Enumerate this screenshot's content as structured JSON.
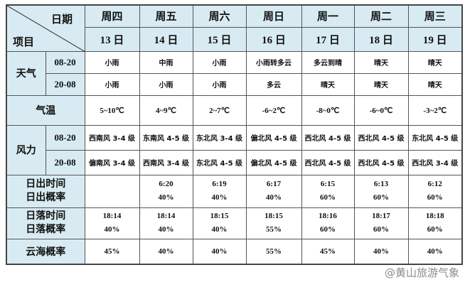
{
  "header": {
    "date_label": "日期",
    "item_label": "项目",
    "days": [
      {
        "dow": "周四",
        "date": "13 日"
      },
      {
        "dow": "周五",
        "date": "14 日"
      },
      {
        "dow": "周六",
        "date": "15 日"
      },
      {
        "dow": "周日",
        "date": "16 日"
      },
      {
        "dow": "周一",
        "date": "17 日"
      },
      {
        "dow": "周二",
        "date": "18 日"
      },
      {
        "dow": "周三",
        "date": "19 日"
      }
    ]
  },
  "rows": {
    "weather": {
      "label": "天气",
      "p1": "08-20",
      "p2": "20-08",
      "day": [
        "小雨",
        "中雨",
        "小雨",
        "小雨转多云",
        "多云到晴",
        "晴天",
        "晴天"
      ],
      "night": [
        "小雨",
        "小雨",
        "小雨",
        "多云",
        "晴天",
        "晴天",
        "晴天"
      ]
    },
    "temp": {
      "label": "气温",
      "values": [
        "5~10℃",
        "4~9℃",
        "2~7℃",
        "-6~2℃",
        "-8~0℃",
        "-6~0℃",
        "-3~2℃"
      ]
    },
    "wind": {
      "label": "风力",
      "p1": "08-20",
      "p2": "20-08",
      "day": [
        "西南风 3-4 级",
        "东南风 4-5 级",
        "东北风 3-4 级",
        "偏北风 4-5 级",
        "西北风 4-5 级",
        "西北风 4-5 级",
        "东北风 4-5 级"
      ],
      "night": [
        "偏南风 3-4 级",
        "西南风 3-4 级",
        "东北风 4-5 级",
        "偏北风 4-5 级",
        "西北风 4-5 级",
        "西北风 4-5 级",
        "西北风 3-4 级"
      ]
    },
    "sunrise": {
      "label1": "日出时间",
      "label2": "日出概率",
      "time": [
        "",
        "6:20",
        "6:19",
        "6:17",
        "6:15",
        "6:13",
        "6:12"
      ],
      "prob": [
        "",
        "40%",
        "40%",
        "40%",
        "60%",
        "60%",
        "60%"
      ]
    },
    "sunset": {
      "label1": "日落时间",
      "label2": "日落概率",
      "time": [
        "18:14",
        "18:14",
        "18:15",
        "18:15",
        "18:16",
        "18:17",
        "18:18"
      ],
      "prob": [
        "40%",
        "40%",
        "40%",
        "55%",
        "60%",
        "60%",
        "60%"
      ]
    },
    "cloudsea": {
      "label": "云海概率",
      "values": [
        "45%",
        "40%",
        "40%",
        "55%",
        "45%",
        "40%",
        "40%"
      ]
    }
  },
  "watermark": "@黄山旅游气象"
}
